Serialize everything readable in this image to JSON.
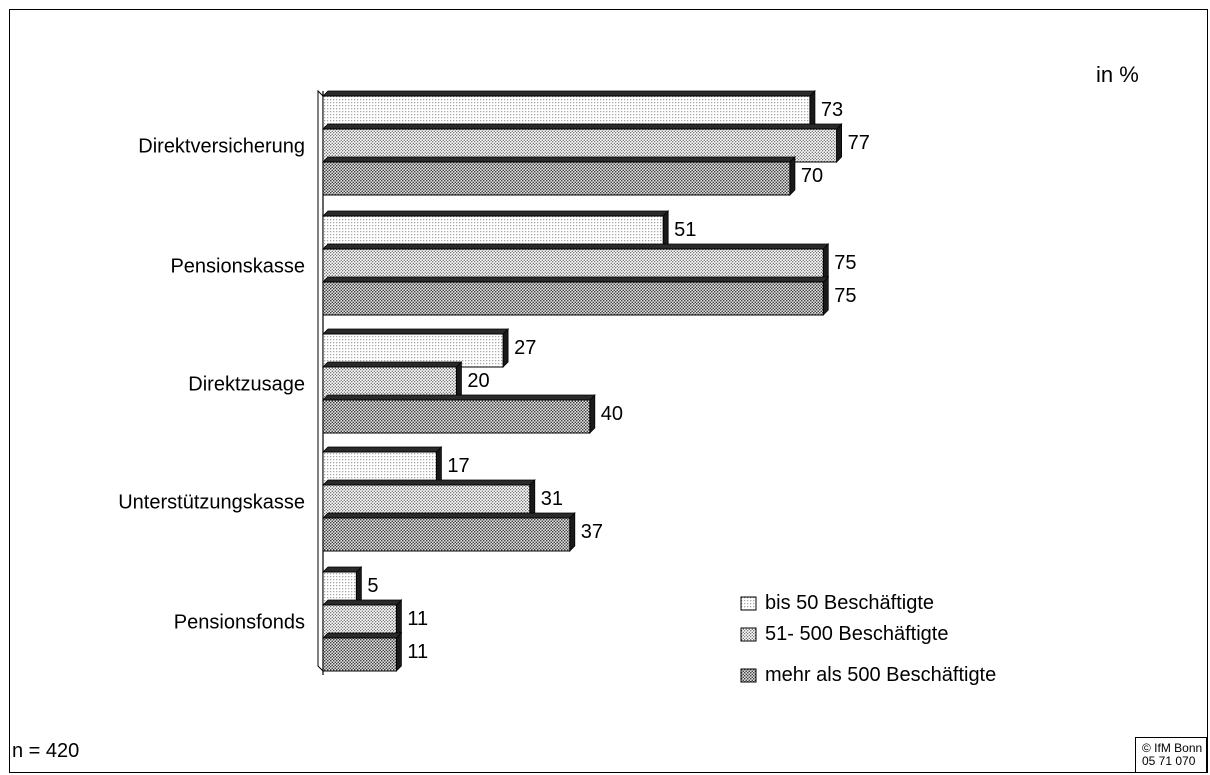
{
  "chart_data": {
    "type": "bar",
    "orientation": "horizontal",
    "unit_label": "in %",
    "categories": [
      "Direktversicherung",
      "Pensionskasse",
      "Direktzusage",
      "Unterstützungskasse",
      "Pensionsfonds"
    ],
    "series": [
      {
        "name": "bis 50 Beschäftigte",
        "values": [
          73,
          51,
          27,
          17,
          5
        ]
      },
      {
        "name": "51- 500 Beschäftigte",
        "values": [
          77,
          75,
          20,
          31,
          11
        ]
      },
      {
        "name": "mehr als 500 Beschäftigte",
        "values": [
          70,
          75,
          40,
          37,
          11
        ]
      }
    ],
    "xlim": [
      0,
      100
    ],
    "grid": false,
    "legend_position": "bottom-right"
  },
  "sample_size": "n = 420",
  "source": {
    "line1": "© IfM Bonn",
    "line2": "05 71 070"
  }
}
